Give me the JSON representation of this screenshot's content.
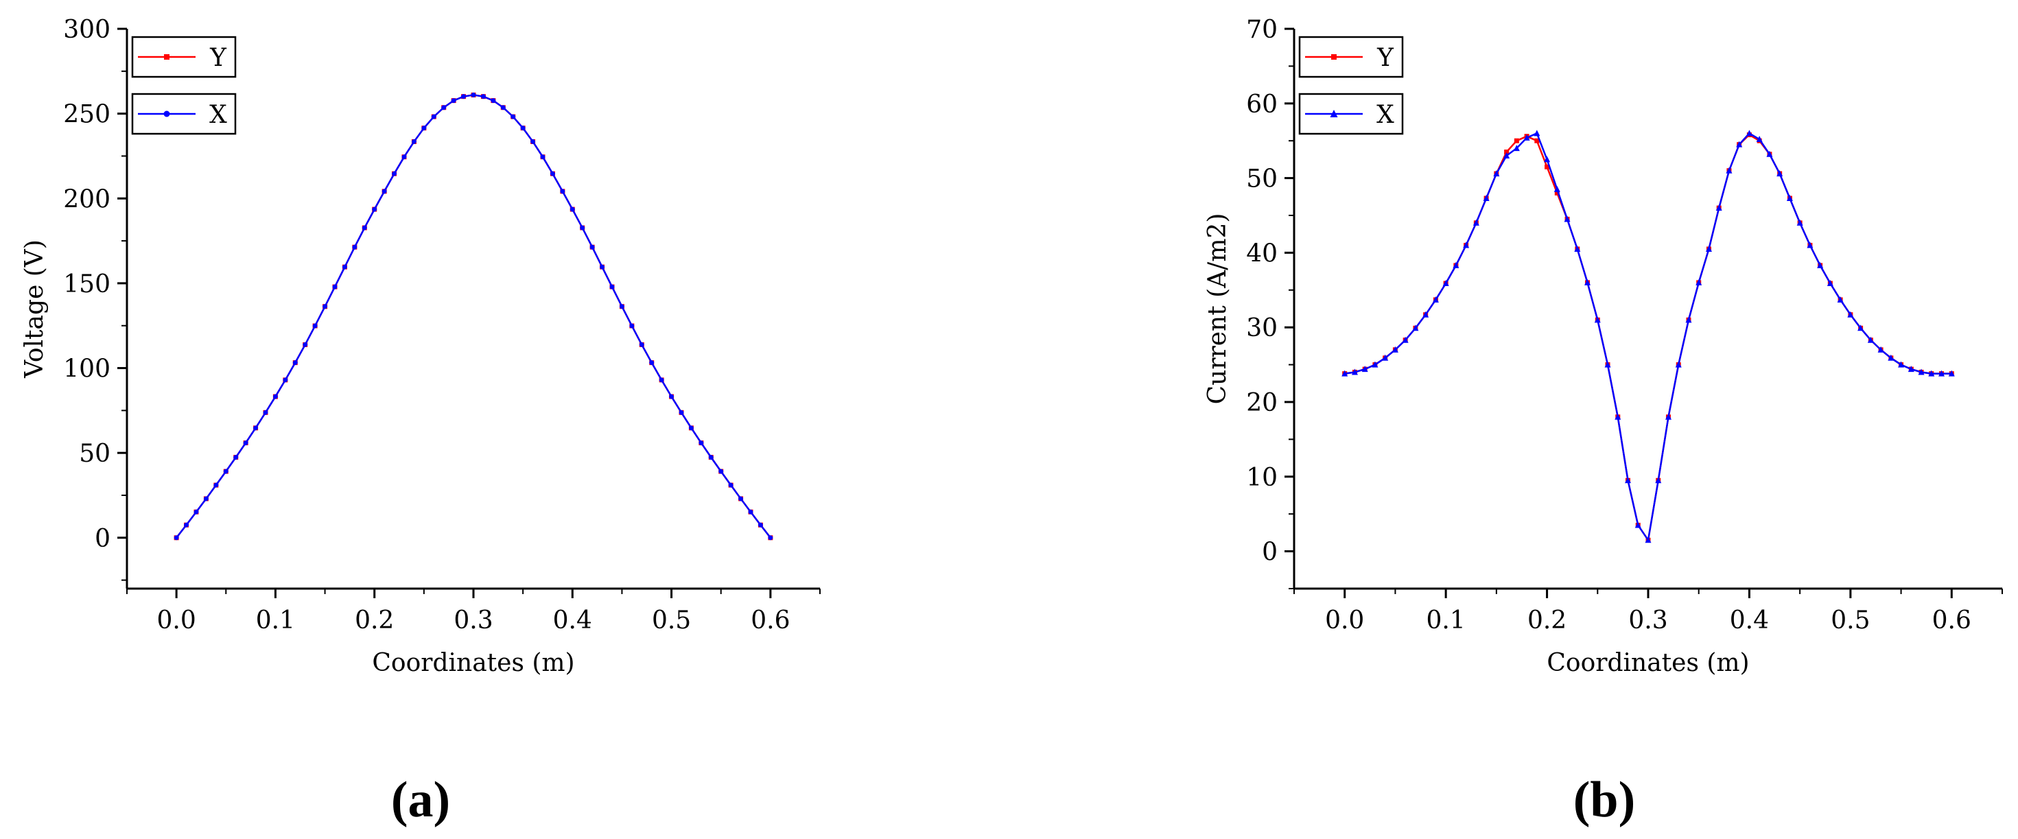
{
  "chart_data": [
    {
      "type": "line",
      "panel_label": "(a)",
      "xlabel": "Coordinates (m)",
      "ylabel": "Voltage (V)",
      "xlim": [
        -0.05,
        0.65
      ],
      "ylim": [
        -30,
        300
      ],
      "x_ticks": [
        "0.0",
        "0.1",
        "0.2",
        "0.3",
        "0.4",
        "0.5",
        "0.6"
      ],
      "y_ticks": [
        "0",
        "50",
        "100",
        "150",
        "200",
        "250",
        "300"
      ],
      "x_tick_values": [
        0,
        0.1,
        0.2,
        0.3,
        0.4,
        0.5,
        0.6
      ],
      "y_tick_values": [
        0,
        50,
        100,
        150,
        200,
        250,
        300
      ],
      "grid": false,
      "legend_position": "top-left",
      "x": [
        0.0,
        0.01,
        0.02,
        0.03,
        0.04,
        0.05,
        0.06,
        0.07,
        0.08,
        0.09,
        0.1,
        0.11,
        0.12,
        0.13,
        0.14,
        0.15,
        0.16,
        0.17,
        0.18,
        0.19,
        0.2,
        0.21,
        0.22,
        0.23,
        0.24,
        0.25,
        0.26,
        0.27,
        0.28,
        0.29,
        0.3,
        0.31,
        0.32,
        0.33,
        0.34,
        0.35,
        0.36,
        0.37,
        0.38,
        0.39,
        0.4,
        0.41,
        0.42,
        0.43,
        0.44,
        0.45,
        0.46,
        0.47,
        0.48,
        0.49,
        0.5,
        0.51,
        0.52,
        0.53,
        0.54,
        0.55,
        0.56,
        0.57,
        0.58,
        0.59,
        0.6
      ],
      "series": [
        {
          "name": "Y",
          "color": "#ff0000",
          "marker": "square",
          "values": [
            0,
            7.5,
            15.2,
            23.0,
            31.0,
            39.1,
            47.4,
            55.9,
            64.7,
            73.8,
            83.2,
            93.0,
            103.2,
            113.8,
            124.9,
            136.3,
            147.9,
            159.6,
            171.3,
            182.7,
            193.6,
            204.2,
            214.6,
            224.5,
            233.5,
            241.5,
            248.2,
            253.6,
            257.7,
            260.1,
            261.0,
            260.1,
            257.7,
            253.6,
            248.2,
            241.5,
            233.5,
            224.5,
            214.6,
            204.2,
            193.6,
            182.7,
            171.3,
            159.6,
            147.9,
            136.3,
            124.9,
            113.8,
            103.2,
            93.0,
            83.2,
            73.8,
            64.7,
            55.9,
            47.4,
            39.1,
            31.0,
            23.0,
            15.2,
            7.5,
            0
          ]
        },
        {
          "name": "X",
          "color": "#0000ff",
          "marker": "circle",
          "values": [
            0,
            7.5,
            15.2,
            23.0,
            31.0,
            39.1,
            47.4,
            55.9,
            64.7,
            73.8,
            83.2,
            93.0,
            103.2,
            113.8,
            124.9,
            136.3,
            147.9,
            159.6,
            171.3,
            182.7,
            193.6,
            204.2,
            214.6,
            224.5,
            233.5,
            241.5,
            248.2,
            253.6,
            257.7,
            260.1,
            261.0,
            260.1,
            257.7,
            253.6,
            248.2,
            241.5,
            233.5,
            224.5,
            214.6,
            204.2,
            193.6,
            182.7,
            171.3,
            159.6,
            147.9,
            136.3,
            124.9,
            113.8,
            103.2,
            93.0,
            83.2,
            73.8,
            64.7,
            55.9,
            47.4,
            39.1,
            31.0,
            23.0,
            15.2,
            7.5,
            0
          ]
        }
      ]
    },
    {
      "type": "line",
      "panel_label": "(b)",
      "xlabel": "Coordinates (m)",
      "ylabel": "Current (A/m2)",
      "xlim": [
        -0.05,
        0.65
      ],
      "ylim": [
        -5,
        70
      ],
      "x_ticks": [
        "0.0",
        "0.1",
        "0.2",
        "0.3",
        "0.4",
        "0.5",
        "0.6"
      ],
      "y_ticks": [
        "0",
        "10",
        "20",
        "30",
        "40",
        "50",
        "60",
        "70"
      ],
      "x_tick_values": [
        0,
        0.1,
        0.2,
        0.3,
        0.4,
        0.5,
        0.6
      ],
      "y_tick_values": [
        0,
        10,
        20,
        30,
        40,
        50,
        60,
        70
      ],
      "grid": false,
      "legend_position": "top-left",
      "x": [
        0.0,
        0.01,
        0.02,
        0.03,
        0.04,
        0.05,
        0.06,
        0.07,
        0.08,
        0.09,
        0.1,
        0.11,
        0.12,
        0.13,
        0.14,
        0.15,
        0.16,
        0.17,
        0.18,
        0.19,
        0.2,
        0.21,
        0.22,
        0.23,
        0.24,
        0.25,
        0.26,
        0.27,
        0.28,
        0.29,
        0.3,
        0.31,
        0.32,
        0.33,
        0.34,
        0.35,
        0.36,
        0.37,
        0.38,
        0.39,
        0.4,
        0.41,
        0.42,
        0.43,
        0.44,
        0.45,
        0.46,
        0.47,
        0.48,
        0.49,
        0.5,
        0.51,
        0.52,
        0.53,
        0.54,
        0.55,
        0.56,
        0.57,
        0.58,
        0.59,
        0.6
      ],
      "series": [
        {
          "name": "Y",
          "color": "#ff0000",
          "marker": "square",
          "values": [
            23.8,
            24.0,
            24.4,
            25.0,
            25.9,
            27.0,
            28.3,
            29.9,
            31.7,
            33.7,
            35.9,
            38.3,
            41.0,
            44.0,
            47.3,
            50.6,
            53.5,
            55.0,
            55.6,
            55.0,
            51.5,
            48.0,
            44.5,
            40.5,
            36.0,
            31.0,
            25.0,
            18.0,
            9.5,
            3.5,
            1.5,
            9.5,
            18.0,
            25.0,
            31.0,
            36.0,
            40.5,
            46.0,
            51.0,
            54.5,
            55.8,
            55.0,
            53.2,
            50.6,
            47.3,
            44.0,
            41.0,
            38.3,
            35.9,
            33.7,
            31.7,
            29.9,
            28.3,
            27.0,
            25.9,
            25.0,
            24.4,
            24.0,
            23.8,
            23.8,
            23.8
          ]
        },
        {
          "name": "X",
          "color": "#0000ff",
          "marker": "triangle",
          "values": [
            23.8,
            24.0,
            24.4,
            25.0,
            25.9,
            27.0,
            28.3,
            29.9,
            31.7,
            33.7,
            35.9,
            38.3,
            41.0,
            44.0,
            47.3,
            50.6,
            53.0,
            54.0,
            55.4,
            56.0,
            52.5,
            48.5,
            44.5,
            40.5,
            36.0,
            31.0,
            25.0,
            18.0,
            9.5,
            3.5,
            1.5,
            9.5,
            18.0,
            25.0,
            31.0,
            36.0,
            40.5,
            46.0,
            51.0,
            54.5,
            56.0,
            55.2,
            53.2,
            50.6,
            47.3,
            44.0,
            41.0,
            38.3,
            35.9,
            33.7,
            31.7,
            29.9,
            28.3,
            27.0,
            25.9,
            25.0,
            24.4,
            24.0,
            23.8,
            23.8,
            23.8
          ]
        }
      ]
    }
  ]
}
